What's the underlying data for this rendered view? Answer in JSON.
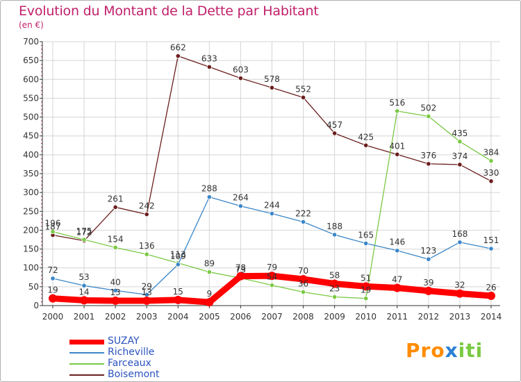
{
  "title": "Evolution du Montant de la Dette par Habitant",
  "unit_label": "(en €)",
  "logo": {
    "text": "Proxiti",
    "parts": [
      "Pro",
      "x",
      "iti"
    ]
  },
  "chart_data": {
    "type": "line",
    "title": "Evolution du Montant de la Dette par Habitant",
    "ylabel": "(en €)",
    "xlabel": "",
    "ylim": [
      0,
      700
    ],
    "yticks": [
      0,
      50,
      100,
      150,
      200,
      250,
      300,
      350,
      400,
      450,
      500,
      550,
      600,
      650,
      700
    ],
    "x": [
      "2000",
      "2001",
      "2002",
      "2003",
      "2004",
      "2005",
      "2006",
      "2007",
      "2008",
      "2009",
      "2010",
      "2011",
      "2012",
      "2013",
      "2014"
    ],
    "grid": true,
    "legend_position": "bottom-left",
    "series": [
      {
        "name": "Boisemont",
        "color": "#6b1e1e",
        "values": [
          187,
          172,
          261,
          242,
          662,
          633,
          603,
          578,
          552,
          457,
          425,
          401,
          376,
          374,
          330
        ]
      },
      {
        "name": "Farceaux",
        "color": "#7ac943",
        "values": [
          196,
          175,
          154,
          136,
          113,
          89,
          73,
          54,
          36,
          23,
          19,
          516,
          502,
          435,
          384
        ]
      },
      {
        "name": "Richeville",
        "color": "#3a86c8",
        "values": [
          72,
          53,
          40,
          29,
          109,
          288,
          264,
          244,
          222,
          188,
          165,
          146,
          123,
          168,
          151
        ]
      },
      {
        "name": "SUZAY",
        "color": "#ff0000",
        "values": [
          19,
          14,
          13,
          13,
          15,
          9,
          78,
          79,
          70,
          58,
          51,
          47,
          39,
          32,
          26
        ]
      }
    ],
    "legend_order": [
      "SUZAY",
      "Richeville",
      "Farceaux",
      "Boisemont"
    ]
  }
}
